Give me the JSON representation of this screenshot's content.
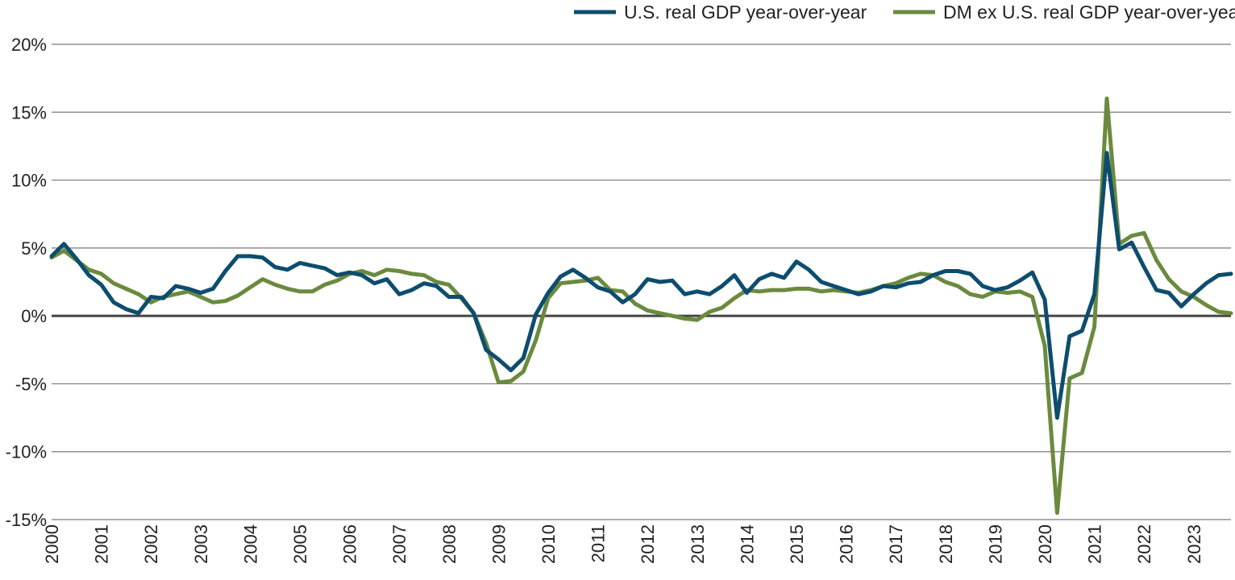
{
  "chart_data": {
    "type": "line",
    "title": "",
    "xlabel": "",
    "ylabel": "",
    "ylim": [
      -15,
      20
    ],
    "y_ticks": [
      20,
      15,
      10,
      5,
      0,
      -5,
      -10,
      -15
    ],
    "y_tick_labels": [
      "20%",
      "15%",
      "10%",
      "5%",
      "0%",
      "-5%",
      "-10%",
      "-15%"
    ],
    "x_ticks": [
      2000,
      2001,
      2002,
      2003,
      2004,
      2005,
      2006,
      2007,
      2008,
      2009,
      2010,
      2011,
      2012,
      2013,
      2014,
      2015,
      2016,
      2017,
      2018,
      2019,
      2020,
      2021,
      2022,
      2023
    ],
    "x_tick_labels": [
      "2000",
      "2001",
      "2002",
      "2003",
      "2004",
      "2005",
      "2006",
      "2007",
      "2008",
      "2009",
      "2010",
      "2011",
      "2012",
      "2013",
      "2014",
      "2015",
      "2016",
      "2017",
      "2018",
      "2019",
      "2020",
      "2021",
      "2022",
      "2023"
    ],
    "grid": "horizontal",
    "legend_position": "top-right",
    "zero_line_emphasis": true,
    "x": [
      2000.0,
      2000.25,
      2000.5,
      2000.75,
      2001.0,
      2001.25,
      2001.5,
      2001.75,
      2002.0,
      2002.25,
      2002.5,
      2002.75,
      2003.0,
      2003.25,
      2003.5,
      2003.75,
      2004.0,
      2004.25,
      2004.5,
      2004.75,
      2005.0,
      2005.25,
      2005.5,
      2005.75,
      2006.0,
      2006.25,
      2006.5,
      2006.75,
      2007.0,
      2007.25,
      2007.5,
      2007.75,
      2008.0,
      2008.25,
      2008.5,
      2008.75,
      2009.0,
      2009.25,
      2009.5,
      2009.75,
      2010.0,
      2010.25,
      2010.5,
      2010.75,
      2011.0,
      2011.25,
      2011.5,
      2011.75,
      2012.0,
      2012.25,
      2012.5,
      2012.75,
      2013.0,
      2013.25,
      2013.5,
      2013.75,
      2014.0,
      2014.25,
      2014.5,
      2014.75,
      2015.0,
      2015.25,
      2015.5,
      2015.75,
      2016.0,
      2016.25,
      2016.5,
      2016.75,
      2017.0,
      2017.25,
      2017.5,
      2017.75,
      2018.0,
      2018.25,
      2018.5,
      2018.75,
      2019.0,
      2019.25,
      2019.5,
      2019.75,
      2020.0,
      2020.25,
      2020.5,
      2020.75,
      2021.0,
      2021.25,
      2021.5,
      2021.75,
      2022.0,
      2022.25,
      2022.5,
      2022.75,
      2023.0,
      2023.25,
      2023.5,
      2023.75
    ],
    "series": [
      {
        "name": "U.S. real GDP year-over-year",
        "color": "#0d4d6e",
        "values": [
          4.4,
          5.3,
          4.2,
          3.0,
          2.3,
          1.0,
          0.5,
          0.2,
          1.4,
          1.3,
          2.2,
          2.0,
          1.7,
          2.0,
          3.3,
          4.4,
          4.4,
          4.3,
          3.6,
          3.4,
          3.9,
          3.7,
          3.5,
          3.0,
          3.2,
          3.0,
          2.4,
          2.7,
          1.6,
          1.9,
          2.4,
          2.2,
          1.4,
          1.4,
          0.2,
          -2.5,
          -3.2,
          -4.0,
          -3.1,
          0.1,
          1.7,
          2.9,
          3.4,
          2.8,
          2.1,
          1.8,
          1.0,
          1.6,
          2.7,
          2.5,
          2.6,
          1.6,
          1.8,
          1.6,
          2.2,
          3.0,
          1.7,
          2.7,
          3.1,
          2.8,
          4.0,
          3.4,
          2.5,
          2.2,
          1.9,
          1.6,
          1.8,
          2.2,
          2.1,
          2.4,
          2.5,
          3.0,
          3.3,
          3.3,
          3.1,
          2.2,
          1.9,
          2.1,
          2.6,
          3.2,
          1.2,
          -7.5,
          -1.5,
          -1.1,
          1.6,
          12.0,
          4.9,
          5.4,
          3.6,
          1.9,
          1.7,
          0.7,
          1.6,
          2.4,
          3.0,
          3.1
        ]
      },
      {
        "name": "DM ex U.S. real GDP year-over-year",
        "color": "#6b8a3e",
        "values": [
          4.3,
          4.8,
          4.1,
          3.4,
          3.1,
          2.4,
          2.0,
          1.6,
          1.0,
          1.4,
          1.6,
          1.8,
          1.4,
          1.0,
          1.1,
          1.5,
          2.1,
          2.7,
          2.3,
          2.0,
          1.8,
          1.8,
          2.3,
          2.6,
          3.1,
          3.3,
          3.0,
          3.4,
          3.3,
          3.1,
          3.0,
          2.5,
          2.3,
          1.3,
          0.2,
          -2.0,
          -4.9,
          -4.8,
          -4.1,
          -1.8,
          1.3,
          2.4,
          2.5,
          2.6,
          2.8,
          1.9,
          1.8,
          0.9,
          0.4,
          0.2,
          0.0,
          -0.2,
          -0.3,
          0.3,
          0.6,
          1.3,
          1.9,
          1.8,
          1.9,
          1.9,
          2.0,
          2.0,
          1.8,
          1.9,
          1.8,
          1.7,
          1.9,
          2.2,
          2.4,
          2.8,
          3.1,
          3.0,
          2.5,
          2.2,
          1.6,
          1.4,
          1.8,
          1.7,
          1.8,
          1.4,
          -2.2,
          -14.5,
          -4.6,
          -4.2,
          -0.8,
          16.0,
          5.3,
          5.9,
          6.1,
          4.1,
          2.7,
          1.8,
          1.4,
          0.8,
          0.3,
          0.2
        ]
      }
    ]
  }
}
